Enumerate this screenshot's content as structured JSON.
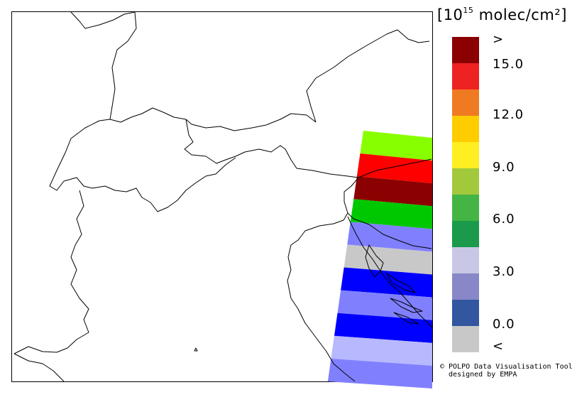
{
  "legend": {
    "unit_prefix": "[10",
    "unit_exponent": "15",
    "unit_suffix": " molec/cm²]",
    "classes": [
      {
        "range": "> 15.0",
        "color": "#8b0000"
      },
      {
        "range": "13.5-15.0",
        "color": "#ee2222"
      },
      {
        "range": "12.0-13.5",
        "color": "#f07a22"
      },
      {
        "range": "10.5-12.0",
        "color": "#ffcc00"
      },
      {
        "range": "9.0-10.5",
        "color": "#ffee22"
      },
      {
        "range": "7.5-9.0",
        "color": "#a2c83c"
      },
      {
        "range": "6.0-7.5",
        "color": "#44b444"
      },
      {
        "range": "4.5-6.0",
        "color": "#1a9a4a"
      },
      {
        "range": "3.0-4.5",
        "color": "#c8c8e6"
      },
      {
        "range": "1.5-3.0",
        "color": "#8888c8"
      },
      {
        "range": "0.0-1.5",
        "color": "#3356a0"
      },
      {
        "range": "< 0.0",
        "color": "#c8c8c8"
      }
    ],
    "tick_labels": [
      ">",
      "15.0",
      "12.0",
      "9.0",
      "6.0",
      "3.0",
      "0.0",
      "<"
    ]
  },
  "swath_bands": [
    {
      "class": "7.5-9.0",
      "color": "#88ff00"
    },
    {
      "class": "13.5-15.0",
      "color": "#ff0000"
    },
    {
      "class": "> 15.0",
      "color": "#8b0000"
    },
    {
      "class": "6.0-7.5",
      "color": "#00c800"
    },
    {
      "class": "1.5-3.0",
      "color": "#8080ff"
    },
    {
      "class": "< 0.0",
      "color": "#c8c8c8"
    },
    {
      "class": "0.0-1.5",
      "color": "#0000ff"
    },
    {
      "class": "1.5-3.0",
      "color": "#8080ff"
    },
    {
      "class": "0.0-1.5",
      "color": "#0000ff"
    },
    {
      "class": "3.0-4.5",
      "color": "#b8b8ff"
    },
    {
      "class": "1.5-3.0",
      "color": "#8080ff"
    }
  ],
  "credit": {
    "line1": "© POLPO Data Visualisation Tool",
    "line2": "  designed by EMPA"
  }
}
